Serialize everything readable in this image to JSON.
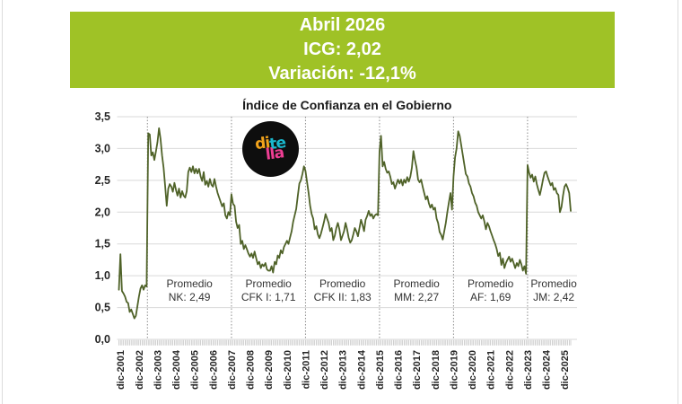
{
  "banner": {
    "line1": "Abril 2026",
    "line2": "ICG: 2,02",
    "line3": "Variación: -12,1%"
  },
  "logo": {
    "di": "di",
    "te": "te",
    "lla": "lla"
  },
  "colors": {
    "banner_bg": "#9fc226",
    "banner_text": "#ffffff",
    "line": "#4f6228",
    "gridline": "#d9d9d9",
    "divider": "#8c8c8c",
    "axis_tick_strip": "#bdbdbd",
    "axis_text": "#262626",
    "title_text": "#1a1a1a",
    "annotation_text": "#333333",
    "logo_bg": "#0e0e0e",
    "logo_di": "#f2a31b",
    "logo_te": "#1ab7cd",
    "logo_lla": "#ee3e93",
    "edge_line": "#dcdcdc"
  },
  "chart_data": {
    "type": "line",
    "title": "Índice de Confianza en el Gobierno",
    "xlabel": "",
    "ylabel": "",
    "ylim": [
      0,
      3.5
    ],
    "y_tick_step": 0.5,
    "grid": true,
    "legend": false,
    "y_tick_labels": [
      "0,0",
      "0,5",
      "1,0",
      "1,5",
      "2,0",
      "2,5",
      "3,0",
      "3,5"
    ],
    "x_tick_labels": [
      "dic-2001",
      "dic-2002",
      "dic-2003",
      "dic-2004",
      "dic-2005",
      "dic-2006",
      "dic-2007",
      "dic-2008",
      "dic-2009",
      "dic-2010",
      "dic-2011",
      "dic-2012",
      "dic-2013",
      "dic-2014",
      "dic-2015",
      "dic-2016",
      "dic-2017",
      "dic-2018",
      "dic-2019",
      "dic-2020",
      "dic-2021",
      "dic-2022",
      "dic-2023",
      "dic-2024",
      "dic-2025"
    ],
    "first_tick_month_index": 1,
    "tick_every_months": 12,
    "x_monthly_start": "nov-2001",
    "x_monthly_end": "abr-2026",
    "latest_point": {
      "label": "abr-2026",
      "value": 2.02,
      "monthly_change_pct": -12.1
    },
    "series": [
      {
        "name": "ICG",
        "values_monthly": [
          0.78,
          1.34,
          0.76,
          0.72,
          0.67,
          0.59,
          0.57,
          0.43,
          0.47,
          0.4,
          0.33,
          0.37,
          0.52,
          0.67,
          0.8,
          0.85,
          0.78,
          0.85,
          0.83,
          3.24,
          3.22,
          2.89,
          2.94,
          2.82,
          2.95,
          3.1,
          3.32,
          3.15,
          2.89,
          2.7,
          2.4,
          2.1,
          2.37,
          2.44,
          2.4,
          2.32,
          2.46,
          2.35,
          2.26,
          2.37,
          2.23,
          2.33,
          2.26,
          2.23,
          2.33,
          2.63,
          2.7,
          2.63,
          2.72,
          2.61,
          2.68,
          2.61,
          2.68,
          2.56,
          2.49,
          2.63,
          2.43,
          2.49,
          2.4,
          2.52,
          2.43,
          2.4,
          2.52,
          2.4,
          2.3,
          2.23,
          2.16,
          2.09,
          2.14,
          1.95,
          1.9,
          2.0,
          1.95,
          2.28,
          2.13,
          2.1,
          1.85,
          1.75,
          1.8,
          1.5,
          1.55,
          1.42,
          1.48,
          1.42,
          1.35,
          1.3,
          1.35,
          1.28,
          1.38,
          1.28,
          1.18,
          1.22,
          1.12,
          1.18,
          1.15,
          1.2,
          1.1,
          1.08,
          1.08,
          1.15,
          1.05,
          1.22,
          1.18,
          1.32,
          1.28,
          1.4,
          1.35,
          1.45,
          1.5,
          1.55,
          1.5,
          1.6,
          1.7,
          1.85,
          1.95,
          2.05,
          2.25,
          2.45,
          2.5,
          2.6,
          2.72,
          2.65,
          2.48,
          2.3,
          2.1,
          1.97,
          1.9,
          1.73,
          1.78,
          1.65,
          1.59,
          1.66,
          1.75,
          1.85,
          1.97,
          1.9,
          1.83,
          1.7,
          1.75,
          1.56,
          1.63,
          1.75,
          1.83,
          1.73,
          1.56,
          1.63,
          1.7,
          1.83,
          1.73,
          1.6,
          1.52,
          1.56,
          1.65,
          1.75,
          1.7,
          1.62,
          1.75,
          1.88,
          1.8,
          1.7,
          1.88,
          1.94,
          2.02,
          1.94,
          1.97,
          1.9,
          1.95,
          1.97,
          1.95,
          2.95,
          3.2,
          2.72,
          2.79,
          2.68,
          2.62,
          2.64,
          2.56,
          2.44,
          2.47,
          2.37,
          2.44,
          2.51,
          2.45,
          2.51,
          2.42,
          2.51,
          2.46,
          2.55,
          2.48,
          2.56,
          2.7,
          2.96,
          2.82,
          2.7,
          2.51,
          2.47,
          2.51,
          2.4,
          2.3,
          2.2,
          2.25,
          2.14,
          2.07,
          2.12,
          2.04,
          2.07,
          1.9,
          1.83,
          1.69,
          1.64,
          1.57,
          1.7,
          1.83,
          2.0,
          2.15,
          2.3,
          2.04,
          2.56,
          2.86,
          3.0,
          3.27,
          3.2,
          3.05,
          2.9,
          2.75,
          2.6,
          2.56,
          2.45,
          2.4,
          2.3,
          2.25,
          2.15,
          2.1,
          2.0,
          1.95,
          1.9,
          1.95,
          1.85,
          1.73,
          1.83,
          1.78,
          1.7,
          1.63,
          1.56,
          1.5,
          1.42,
          1.31,
          1.36,
          1.17,
          1.27,
          1.12,
          1.2,
          1.25,
          1.3,
          1.22,
          1.27,
          1.2,
          1.12,
          1.2,
          1.15,
          1.25,
          1.18,
          1.08,
          1.15,
          1.03,
          2.74,
          2.62,
          2.54,
          2.59,
          2.48,
          2.56,
          2.44,
          2.35,
          2.27,
          2.38,
          2.51,
          2.62,
          2.64,
          2.56,
          2.49,
          2.42,
          2.46,
          2.35,
          2.38,
          2.3,
          2.27,
          2.0,
          2.08,
          2.26,
          2.4,
          2.44,
          2.38,
          2.3,
          2.02
        ]
      }
    ],
    "period_dividers": {
      "style": "dotted-vertical",
      "month_indices": [
        18.5,
        73,
        121,
        169,
        217,
        265
      ]
    },
    "annotations": [
      {
        "line1": "Promedio",
        "line2": "NK: 2,49",
        "center_month_index": 45.75
      },
      {
        "line1": "Promedio",
        "line2": "CFK I: 1,71",
        "center_month_index": 97
      },
      {
        "line1": "Promedio",
        "line2": "CFK II: 1,83",
        "center_month_index": 145
      },
      {
        "line1": "Promedio",
        "line2": "MM: 2,27",
        "center_month_index": 193
      },
      {
        "line1": "Promedio",
        "line2": "AF: 1,69",
        "center_month_index": 241
      },
      {
        "line1": "Promedio",
        "line2": "JM: 2,42",
        "center_month_index": 282
      }
    ]
  }
}
